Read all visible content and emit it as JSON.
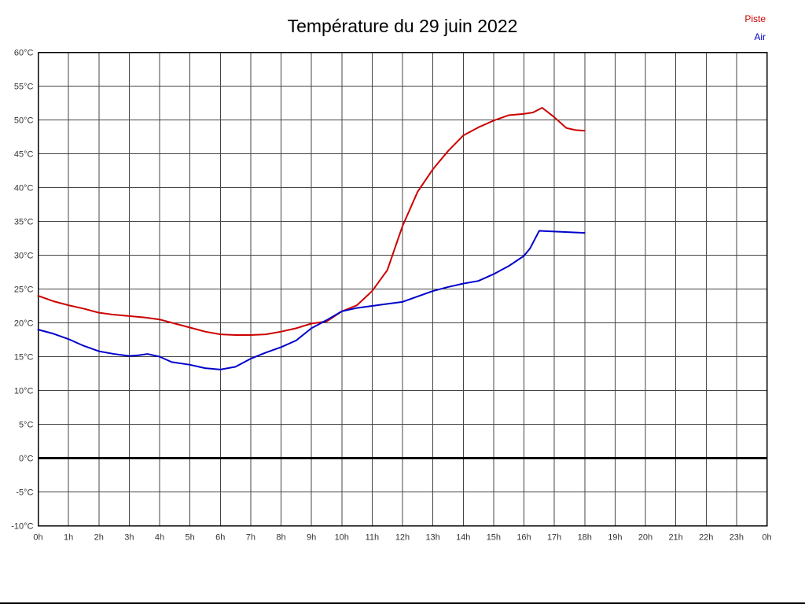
{
  "page": {
    "background": "#ffffff"
  },
  "legend": {
    "piste_label": "Piste",
    "air_label": "Air"
  },
  "chart_data": {
    "type": "line",
    "title": "Température du 29 juin 2022",
    "xlabel": "",
    "ylabel": "",
    "xlim": [
      0,
      24
    ],
    "ylim": [
      -10,
      60
    ],
    "y_tick_step": 5,
    "grid": true,
    "zero_line": true,
    "legend_position": "top-right",
    "x_tick_labels": [
      "0h",
      "1h",
      "2h",
      "3h",
      "4h",
      "5h",
      "6h",
      "7h",
      "8h",
      "9h",
      "10h",
      "11h",
      "12h",
      "13h",
      "14h",
      "15h",
      "16h",
      "17h",
      "18h",
      "19h",
      "20h",
      "21h",
      "22h",
      "23h",
      "0h"
    ],
    "y_tick_labels": [
      "60°C",
      "55°C",
      "50°C",
      "45°C",
      "40°C",
      "35°C",
      "30°C",
      "25°C",
      "20°C",
      "15°C",
      "10°C",
      "5°C",
      "0°C",
      "-5°C",
      "-10°C"
    ],
    "series": [
      {
        "name": "Piste",
        "color": "#cc0000",
        "points": [
          [
            0,
            24
          ],
          [
            0.5,
            23.2
          ],
          [
            1,
            22.6
          ],
          [
            1.5,
            22.1
          ],
          [
            2,
            21.5
          ],
          [
            2.5,
            21.2
          ],
          [
            3,
            21
          ],
          [
            3.5,
            20.8
          ],
          [
            4,
            20.5
          ],
          [
            4.5,
            19.9
          ],
          [
            5,
            19.3
          ],
          [
            5.5,
            18.7
          ],
          [
            6,
            18.3
          ],
          [
            6.5,
            18.2
          ],
          [
            7,
            18.2
          ],
          [
            7.5,
            18.3
          ],
          [
            8,
            18.7
          ],
          [
            8.5,
            19.2
          ],
          [
            9,
            19.9
          ],
          [
            9.5,
            20.2
          ],
          [
            10,
            21.7
          ],
          [
            10.5,
            22.6
          ],
          [
            11,
            24.7
          ],
          [
            11.5,
            27.8
          ],
          [
            12,
            34.3
          ],
          [
            12.5,
            39.4
          ],
          [
            13,
            42.7
          ],
          [
            13.5,
            45.4
          ],
          [
            14,
            47.7
          ],
          [
            14.5,
            48.9
          ],
          [
            15,
            49.9
          ],
          [
            15.5,
            50.7
          ],
          [
            16,
            50.9
          ],
          [
            16.3,
            51.1
          ],
          [
            16.6,
            51.8
          ],
          [
            17,
            50.4
          ],
          [
            17.4,
            48.8
          ],
          [
            17.7,
            48.5
          ],
          [
            18,
            48.4
          ]
        ]
      },
      {
        "name": "Air",
        "color": "#0000cc",
        "points": [
          [
            0,
            19
          ],
          [
            0.5,
            18.4
          ],
          [
            1,
            17.6
          ],
          [
            1.5,
            16.6
          ],
          [
            2,
            15.8
          ],
          [
            2.5,
            15.4
          ],
          [
            3,
            15.1
          ],
          [
            3.3,
            15.2
          ],
          [
            3.6,
            15.4
          ],
          [
            4,
            15
          ],
          [
            4.4,
            14.2
          ],
          [
            5,
            13.8
          ],
          [
            5.5,
            13.3
          ],
          [
            6,
            13.1
          ],
          [
            6.5,
            13.5
          ],
          [
            7,
            14.7
          ],
          [
            7.5,
            15.6
          ],
          [
            8,
            16.4
          ],
          [
            8.5,
            17.4
          ],
          [
            9,
            19.2
          ],
          [
            9.5,
            20.4
          ],
          [
            10,
            21.7
          ],
          [
            10.5,
            22.2
          ],
          [
            11,
            22.5
          ],
          [
            11.5,
            22.8
          ],
          [
            12,
            23.1
          ],
          [
            12.5,
            23.9
          ],
          [
            13,
            24.7
          ],
          [
            13.5,
            25.3
          ],
          [
            14,
            25.8
          ],
          [
            14.5,
            26.2
          ],
          [
            15,
            27.2
          ],
          [
            15.5,
            28.4
          ],
          [
            16,
            29.9
          ],
          [
            16.2,
            31
          ],
          [
            16.5,
            33.6
          ],
          [
            17,
            33.5
          ],
          [
            17.5,
            33.4
          ],
          [
            18,
            33.3
          ]
        ]
      }
    ]
  }
}
